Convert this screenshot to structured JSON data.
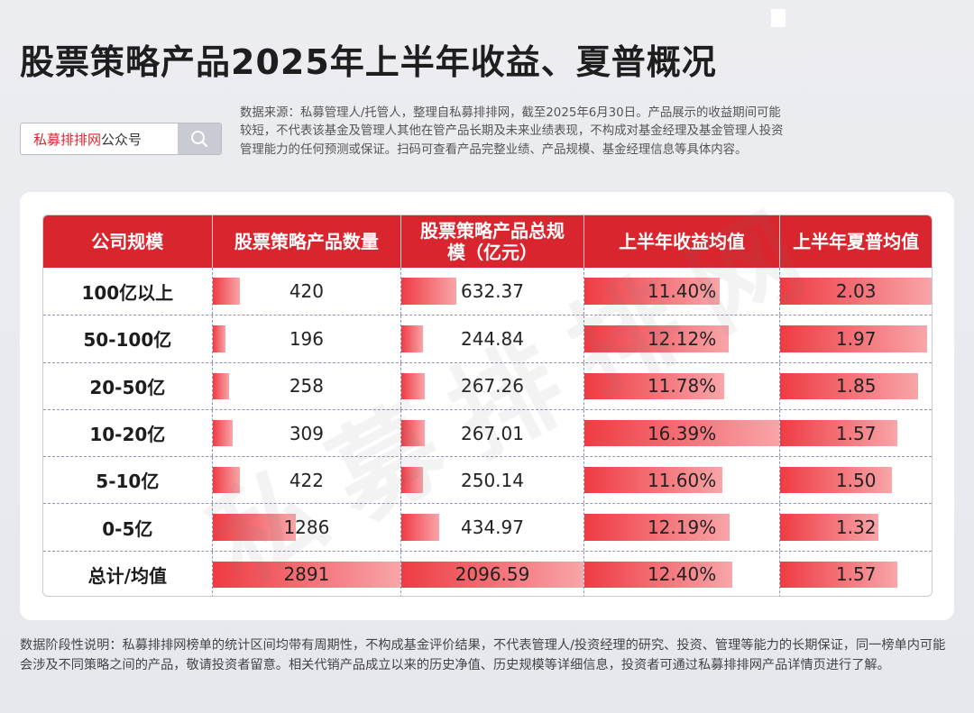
{
  "title": "股票策略产品2025年上半年收益、夏普概况",
  "search": {
    "brand": "私募排排网",
    "suffix": "公众号",
    "icon": "search-icon"
  },
  "source_note": "数据来源：私募管理人/托管人，整理自私募排排网，截至2025年6月30日。产品展示的收益期间可能较短，不代表该基金及管理人其他在管产品长期及未来业绩表现，不构成对基金经理及基金管理人投资管理能力的任何预测或保证。扫码可查看产品完整业绩、产品规模、基金经理信息等具体内容。",
  "table": {
    "headers": [
      "公司规模",
      "股票策略产品数量",
      "股票策略产品总规模（亿元）",
      "上半年收益均值",
      "上半年夏普均值"
    ],
    "rows": [
      {
        "label": "100亿以上",
        "count": "420",
        "scale": "632.37",
        "ret": "11.40%",
        "sharpe": "2.03"
      },
      {
        "label": "50-100亿",
        "count": "196",
        "scale": "244.84",
        "ret": "12.12%",
        "sharpe": "1.97"
      },
      {
        "label": "20-50亿",
        "count": "258",
        "scale": "267.26",
        "ret": "11.78%",
        "sharpe": "1.85"
      },
      {
        "label": "10-20亿",
        "count": "309",
        "scale": "267.01",
        "ret": "16.39%",
        "sharpe": "1.57"
      },
      {
        "label": "5-10亿",
        "count": "422",
        "scale": "250.14",
        "ret": "11.60%",
        "sharpe": "1.50"
      },
      {
        "label": "0-5亿",
        "count": "1286",
        "scale": "434.97",
        "ret": "12.19%",
        "sharpe": "1.32"
      },
      {
        "label": "总计/均值",
        "count": "2891",
        "scale": "2096.59",
        "ret": "12.40%",
        "sharpe": "1.57"
      }
    ]
  },
  "watermark": "私募排排网",
  "footer_note": "数据阶段性说明：私募排排网榜单的统计区间均带有周期性，不构成基金评价结果，不代表管理人/投资经理的研究、投资、管理等能力的长期保证，同一榜单内可能会涉及不同策略之间的产品，敬请投资者留意。相关代销产品成立以来的历史净值、历史规模等详细信息，投资者可通过私募排排网产品详情页进行了解。",
  "colors": {
    "accent": "#d9252e",
    "bar_start": "#ef3b43",
    "bar_end": "#f8a5a9"
  }
}
